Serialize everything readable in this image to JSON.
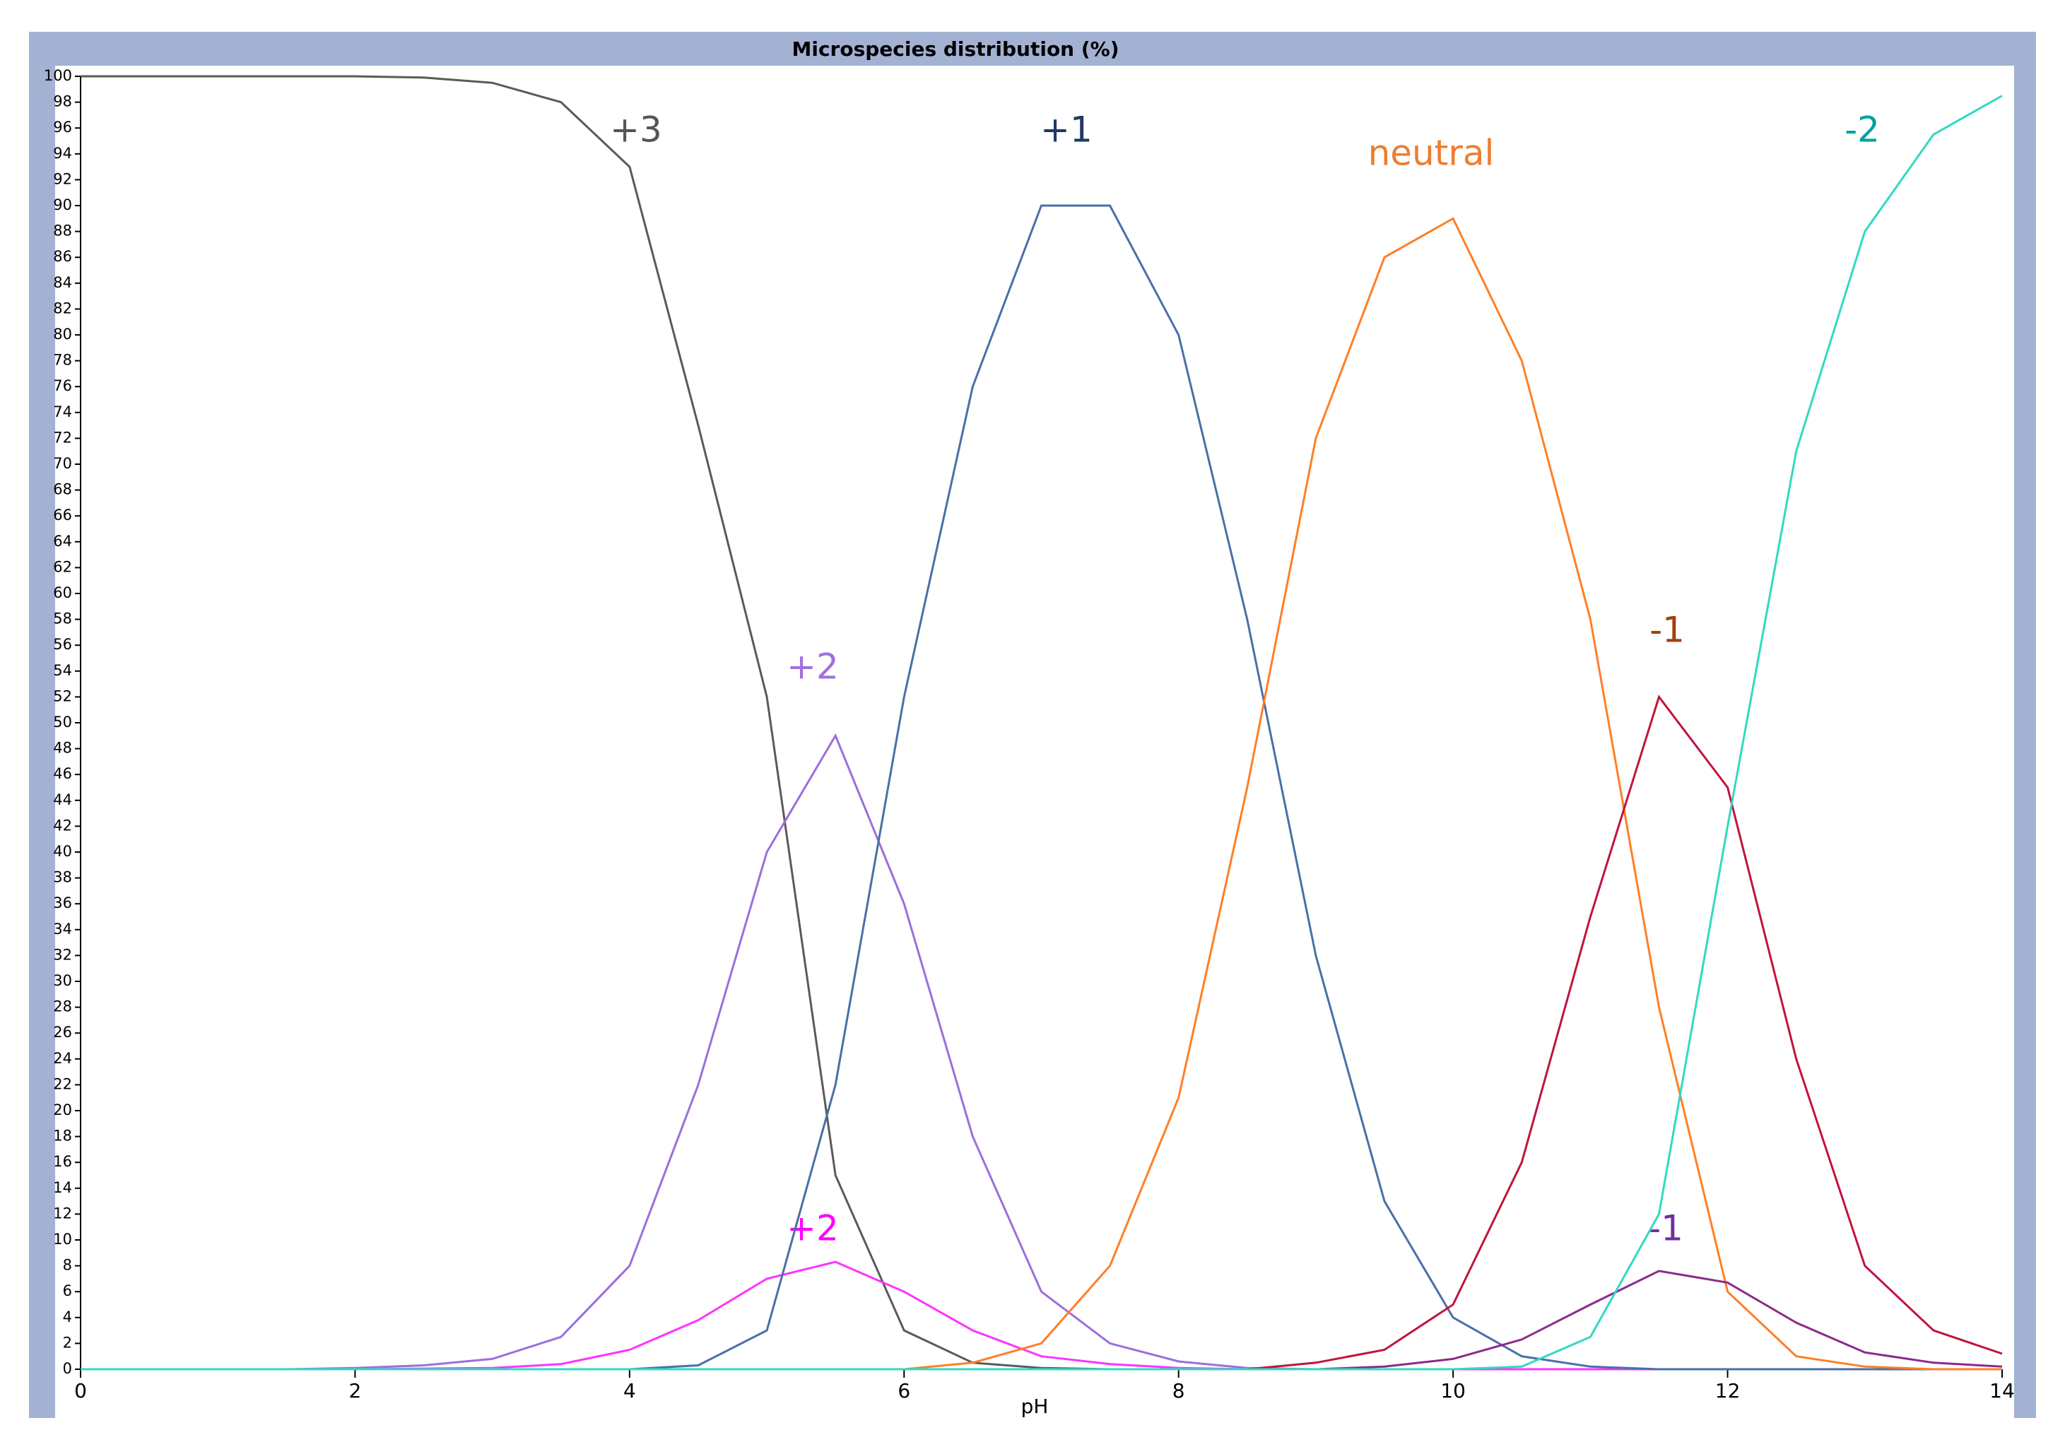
{
  "chart_data": {
    "type": "line",
    "title": "Microspecies distribution (%)",
    "x_label": "pH",
    "x": [
      0,
      0.5,
      1,
      1.5,
      2,
      2.5,
      3,
      3.5,
      4,
      4.5,
      5,
      5.5,
      6,
      6.5,
      7,
      7.5,
      8,
      8.5,
      9,
      9.5,
      10,
      10.5,
      11,
      11.5,
      12,
      12.5,
      13,
      13.5,
      14
    ],
    "xlim": [
      0,
      14
    ],
    "xticks": [
      0,
      2,
      4,
      6,
      8,
      10,
      12,
      14
    ],
    "ylim": [
      0,
      100
    ],
    "yticks": [
      0,
      2,
      4,
      6,
      8,
      10,
      12,
      14,
      16,
      18,
      20,
      22,
      24,
      26,
      28,
      30,
      32,
      34,
      36,
      38,
      40,
      42,
      44,
      46,
      48,
      50,
      52,
      54,
      56,
      58,
      60,
      62,
      64,
      66,
      68,
      70,
      72,
      74,
      76,
      78,
      80,
      82,
      84,
      86,
      88,
      90,
      92,
      94,
      96,
      98,
      100
    ],
    "series": [
      {
        "name": "+3",
        "color": "#5a5a5a",
        "label_color": "#555555",
        "values": [
          100,
          100,
          100,
          100,
          100,
          99.9,
          99.5,
          98,
          93,
          73,
          52,
          15,
          3,
          0.5,
          0.1,
          0,
          0,
          0,
          0,
          0,
          0,
          0,
          0,
          0,
          0,
          0,
          0,
          0,
          0
        ]
      },
      {
        "name": "+2",
        "color": "#9b6fdc",
        "label_color": "#a070e0",
        "values": [
          0,
          0,
          0,
          0,
          0.1,
          0.3,
          0.8,
          2.5,
          8,
          22,
          40,
          49,
          36,
          18,
          6,
          2,
          0.6,
          0.1,
          0,
          0,
          0,
          0,
          0,
          0,
          0,
          0,
          0,
          0,
          0
        ]
      },
      {
        "name": "+2",
        "color": "#ff33ff",
        "label_color": "#ff00ff",
        "values": [
          0,
          0,
          0,
          0,
          0,
          0.05,
          0.1,
          0.4,
          1.5,
          3.8,
          7,
          8.3,
          6,
          3,
          1,
          0.4,
          0.1,
          0,
          0,
          0,
          0,
          0,
          0,
          0,
          0,
          0,
          0,
          0,
          0
        ]
      },
      {
        "name": "+1",
        "color": "#4a6fa8",
        "label_color": "#1f3864",
        "values": [
          0,
          0,
          0,
          0,
          0,
          0,
          0,
          0,
          0,
          0.3,
          3,
          22,
          52,
          76,
          90,
          90,
          80,
          58,
          32,
          13,
          4,
          1,
          0.2,
          0,
          0,
          0,
          0,
          0,
          0
        ]
      },
      {
        "name": "neutral",
        "color": "#ff7f27",
        "label_color": "#ed7d31",
        "values": [
          0,
          0,
          0,
          0,
          0,
          0,
          0,
          0,
          0,
          0,
          0,
          0,
          0,
          0.5,
          2,
          8,
          21,
          45,
          72,
          86,
          89,
          78,
          58,
          28,
          6,
          1,
          0.2,
          0,
          0
        ]
      },
      {
        "name": "-1",
        "color": "#c0143c",
        "label_color": "#a0410d",
        "values": [
          0,
          0,
          0,
          0,
          0,
          0,
          0,
          0,
          0,
          0,
          0,
          0,
          0,
          0,
          0,
          0,
          0,
          0,
          0.5,
          1.5,
          5,
          16,
          35,
          52,
          45,
          24,
          8,
          3,
          1.2
        ]
      },
      {
        "name": "-1",
        "color": "#8b2a8b",
        "label_color": "#7030a0",
        "values": [
          0,
          0,
          0,
          0,
          0,
          0,
          0,
          0,
          0,
          0,
          0,
          0,
          0,
          0,
          0,
          0,
          0,
          0,
          0,
          0.2,
          0.8,
          2.3,
          5,
          7.6,
          6.7,
          3.6,
          1.3,
          0.5,
          0.2
        ]
      },
      {
        "name": "-2",
        "color": "#33d9c1",
        "label_color": "#00a0a0",
        "values": [
          0,
          0,
          0,
          0,
          0,
          0,
          0,
          0,
          0,
          0,
          0,
          0,
          0,
          0,
          0,
          0,
          0,
          0,
          0,
          0,
          0,
          0.2,
          2.5,
          12,
          42,
          71,
          88,
          95.5,
          98.5
        ]
      }
    ]
  }
}
